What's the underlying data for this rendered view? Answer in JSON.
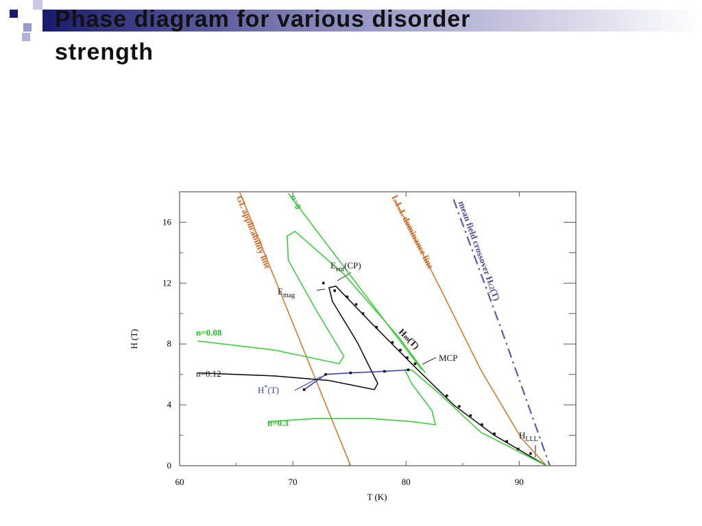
{
  "slide": {
    "title": "Phase diagram for various disorder strength"
  },
  "chart_data": {
    "type": "line",
    "xlabel": "T (K)",
    "ylabel": "H (T)",
    "xlim": [
      60,
      95
    ],
    "ylim": [
      0,
      18
    ],
    "xticks": [
      60,
      70,
      80,
      90
    ],
    "yticks": [
      0,
      4,
      8,
      12,
      16
    ],
    "series": [
      {
        "color": "#d9782d",
        "style": "solid",
        "x": [
          65.3,
          75.1
        ],
        "values": [
          18,
          0
        ]
      },
      {
        "color": "#d9782d",
        "style": "solid",
        "x": [
          79.0,
          83.0,
          86.6,
          90.2,
          92.4
        ],
        "values": [
          17.5,
          11.7,
          6.3,
          1.8,
          0
        ]
      },
      {
        "color": "#5a5aa8",
        "style": "dashdot",
        "x": [
          84.2,
          88.4,
          92.7
        ],
        "values": [
          17.5,
          9.0,
          0
        ]
      },
      {
        "color": "#3ccc3c",
        "style": "solid",
        "x": [
          69.6,
          81.4
        ],
        "values": [
          17.9,
          6.3
        ]
      },
      {
        "color": "#3ccc3c",
        "style": "solid",
        "x": [
          61.6,
          68.4,
          74.1,
          74.5,
          72.0,
          69.6,
          69.5,
          70.2,
          74.5,
          79.3,
          81.7
        ],
        "values": [
          8.2,
          7.6,
          6.7,
          7.2,
          10.3,
          13.5,
          15.1,
          15.4,
          12.6,
          8.5,
          6.1
        ]
      },
      {
        "color": "#111111",
        "style": "solid",
        "x": [
          61.6,
          68.4,
          73.2,
          77.2,
          77.5,
          75.7,
          73.5,
          73.2,
          73.8,
          76.9,
          80.5,
          84.2,
          87.8,
          92.4
        ],
        "values": [
          6.1,
          5.9,
          5.6,
          5.0,
          5.4,
          8.1,
          10.8,
          11.7,
          11.8,
          9.4,
          6.7,
          4.0,
          2.0,
          0
        ]
      },
      {
        "color": "#3ccc3c",
        "style": "solid",
        "x": [
          67.8,
          72.0,
          76.9,
          80.5,
          82.6,
          82.3,
          80.5,
          79.9,
          80.5,
          83.0,
          86.6,
          92.4
        ],
        "values": [
          2.9,
          3.1,
          3.1,
          2.9,
          2.7,
          3.6,
          5.4,
          6.3,
          6.3,
          4.7,
          2.2,
          0
        ]
      },
      {
        "color": "#3344aa",
        "style": "line+markers",
        "x": [
          71.0,
          72.9,
          75.1,
          78.1,
          80.2
        ],
        "values": [
          5.0,
          6.0,
          6.1,
          6.2,
          6.3
        ]
      },
      {
        "color": "#111111",
        "style": "dots",
        "x": [
          72.7,
          73.7,
          74.8,
          75.6,
          76.2,
          77.4,
          78.8,
          79.5,
          80.1,
          80.8,
          83.6,
          84.7,
          85.7,
          86.7,
          87.8,
          88.9,
          89.9,
          91.0
        ],
        "values": [
          12.0,
          11.5,
          11.1,
          10.6,
          10.0,
          9.1,
          8.1,
          7.6,
          7.1,
          6.7,
          4.6,
          3.9,
          3.3,
          2.7,
          2.1,
          1.6,
          1.1,
          0.8
        ]
      }
    ],
    "annotations": [
      {
        "text": "GL applicability line"
      },
      {
        "text": "n=0"
      },
      {
        "text": "L.L.L dominance line"
      },
      {
        "text": "mean field crossover H",
        "sub": "c2",
        "suffix": "(T)"
      },
      {
        "text": "E",
        "sub": "ent",
        "suffix": "(CP)"
      },
      {
        "text": "E",
        "sub": "mag"
      },
      {
        "text": "H",
        "sub": "m",
        "suffix": "(T)"
      },
      {
        "text": "MCP"
      },
      {
        "text": "n=0.08"
      },
      {
        "text": "n=0.12"
      },
      {
        "text": "H",
        "sup": "*",
        "suffix": "(T)"
      },
      {
        "text": "n=0.3"
      },
      {
        "text": "H",
        "sub": "LLL"
      }
    ]
  }
}
